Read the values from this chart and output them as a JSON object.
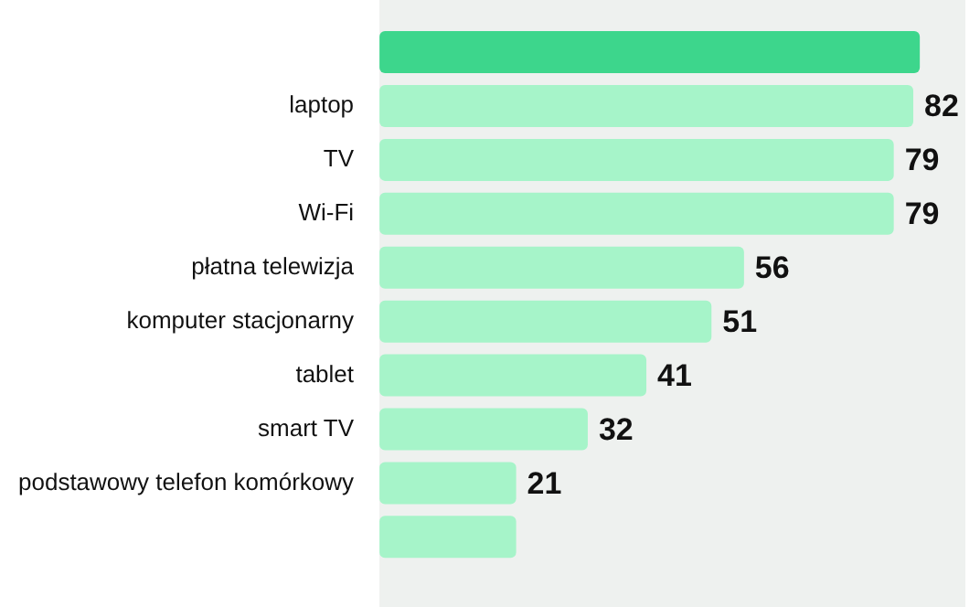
{
  "chart_data": {
    "type": "bar",
    "orientation": "horizontal",
    "categories": [
      null,
      "laptop",
      "TV",
      "Wi-Fi",
      "płatna telewizja",
      "komputer stacjonarny",
      "tablet",
      "smart TV",
      "podstawowy telefon komórkowy",
      null
    ],
    "values": [
      83,
      82,
      79,
      79,
      56,
      51,
      41,
      32,
      21,
      21
    ],
    "colors": [
      "#3dd68c",
      "#a6f4c9",
      "#a6f4c9",
      "#a6f4c9",
      "#a6f4c9",
      "#a6f4c9",
      "#a6f4c9",
      "#a6f4c9",
      "#a6f4c9",
      "#a6f4c9"
    ],
    "value_labels": [
      null,
      "82",
      "79",
      "79",
      "56",
      "51",
      "41",
      "32",
      "21",
      null
    ],
    "xlim": [
      0,
      90
    ],
    "legend": false
  }
}
